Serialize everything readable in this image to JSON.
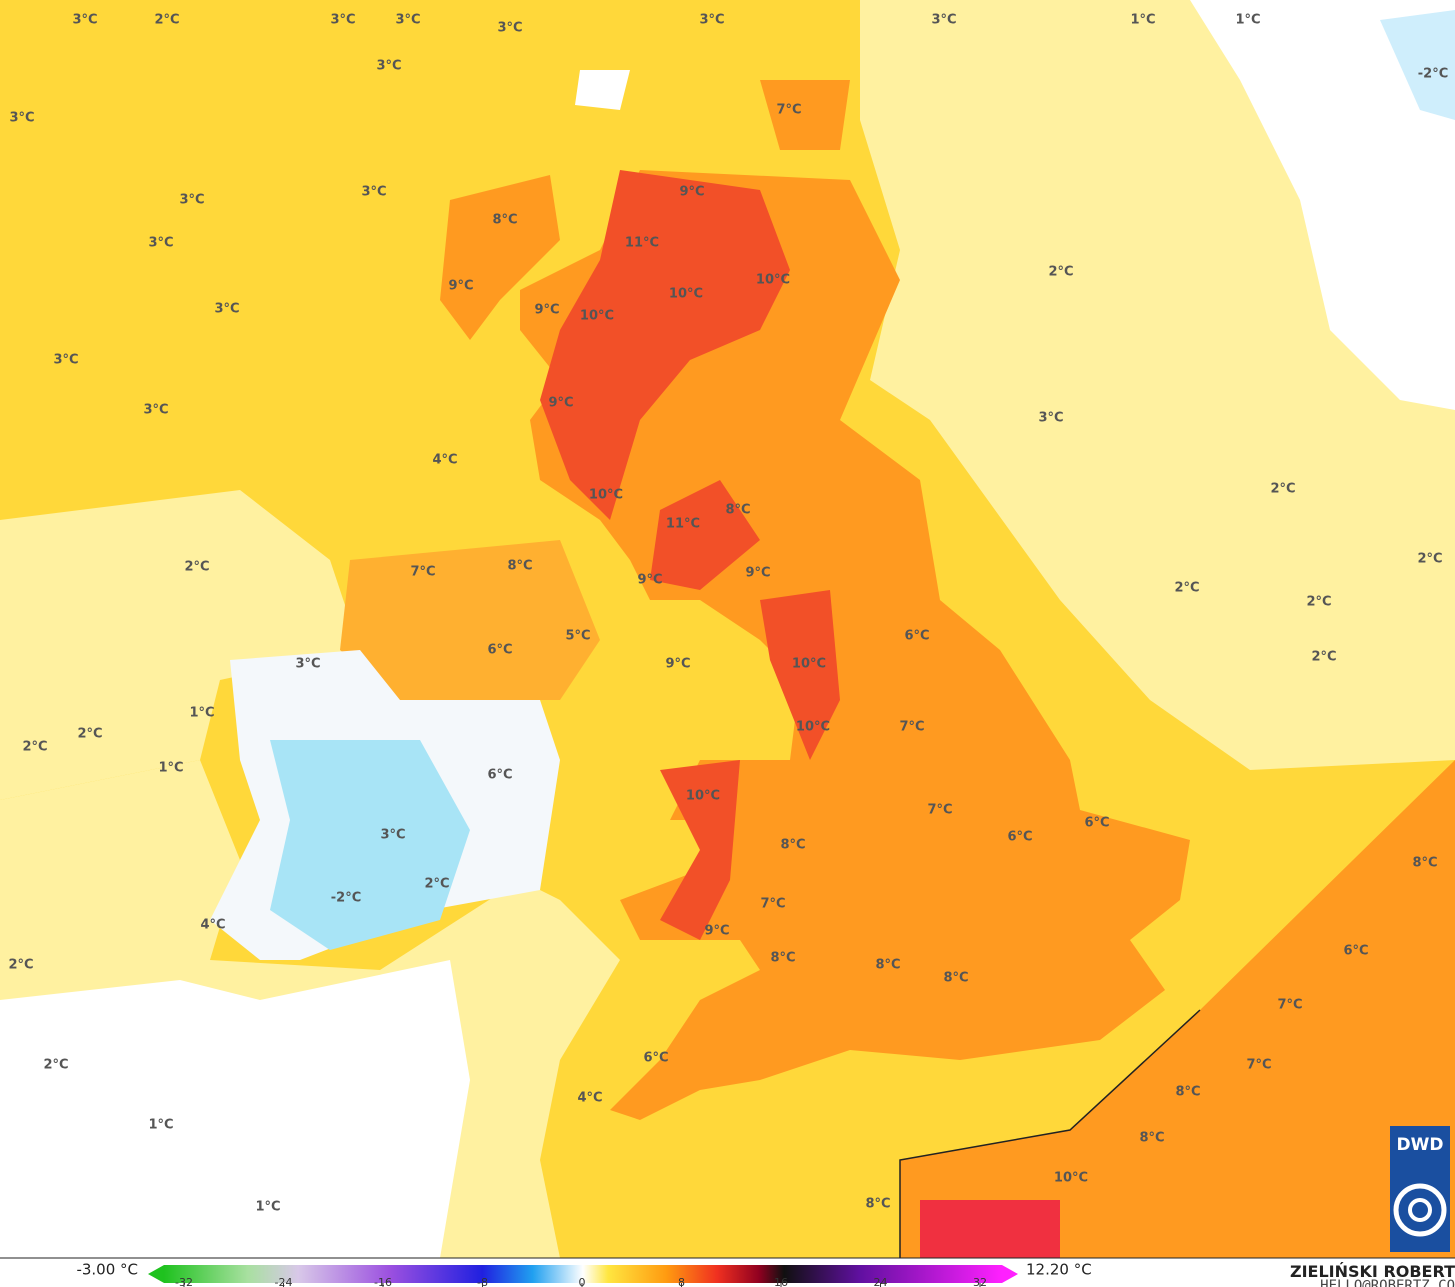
{
  "map": {
    "labels": [
      "3°C",
      "2°C",
      "3°C",
      "3°C",
      "3°C",
      "3°C",
      "3°C",
      "1°C",
      "1°C",
      "-2°C",
      "3°C",
      "7°C",
      "3°C",
      "3°C",
      "3°C",
      "9°C",
      "8°C",
      "3°C",
      "11°C",
      "10°C",
      "9°C",
      "10°C",
      "2°C",
      "9°C",
      "10°C",
      "3°C",
      "3°C",
      "3°C",
      "9°C",
      "3°C",
      "4°C",
      "10°C",
      "2°C",
      "11°C",
      "8°C",
      "2°C",
      "7°C",
      "8°C",
      "9°C",
      "9°C",
      "2°C",
      "2°C",
      "2°C",
      "5°C",
      "6°C",
      "6°C",
      "3°C",
      "9°C",
      "10°C",
      "2°C",
      "1°C",
      "2°C",
      "2°C",
      "10°C",
      "7°C",
      "1°C",
      "6°C",
      "10°C",
      "7°C",
      "6°C",
      "6°C",
      "3°C",
      "8°C",
      "8°C",
      "2°C",
      "-2°C",
      "7°C",
      "4°C",
      "9°C",
      "2°C",
      "8°C",
      "8°C",
      "6°C",
      "8°C",
      "7°C",
      "7°C",
      "6°C",
      "2°C",
      "8°C",
      "4°C",
      "1°C",
      "8°C",
      "10°C",
      "8°C",
      "1°C"
    ]
  },
  "colorbar": {
    "min_label": "-3.00 °C",
    "max_label": "12.20 °C",
    "ticks": [
      -32,
      -24,
      -16,
      -8,
      0,
      8,
      16,
      24,
      32
    ]
  },
  "credit": {
    "name": "ZIELIŃSKI ROBERT",
    "contact": "HELLO@ROBERTZ.CO"
  },
  "logo": "DWD"
}
